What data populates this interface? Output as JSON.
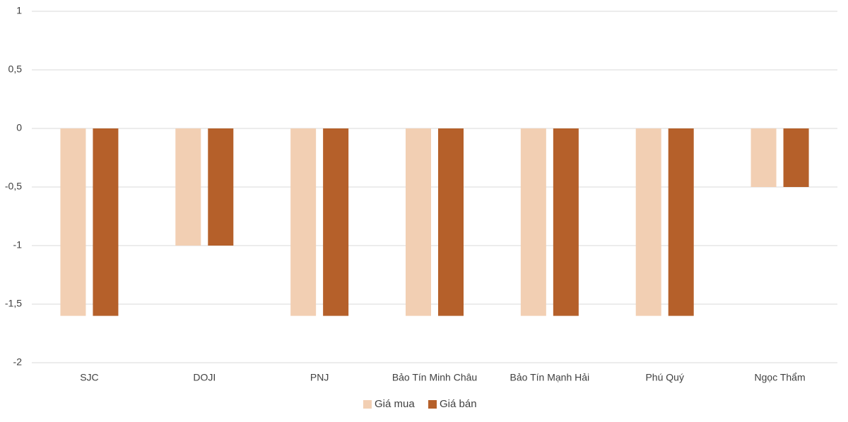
{
  "chart_data": {
    "type": "bar",
    "categories": [
      "SJC",
      "DOJI",
      "PNJ",
      "Bảo Tín Minh Châu",
      "Bảo Tín Mạnh Hải",
      "Phú Quý",
      "Ngọc Thẩm"
    ],
    "series": [
      {
        "name": "Giá mua",
        "color": "#f2cfb3",
        "values": [
          -1.6,
          -1,
          -1.6,
          -1.6,
          -1.6,
          -1.6,
          -0.5
        ]
      },
      {
        "name": "Giá bán",
        "color": "#b5602a",
        "values": [
          -1.6,
          -1,
          -1.6,
          -1.6,
          -1.6,
          -1.6,
          -0.5
        ]
      }
    ],
    "ylim": [
      -2,
      1
    ],
    "yticks": [
      -2,
      {
        "value": -1.5,
        "label": "-1,5"
      },
      -1,
      {
        "value": -0.5,
        "label": "-0,5"
      },
      0,
      {
        "value": 0.5,
        "label": "0,5"
      },
      1
    ],
    "grid": true,
    "legend": "bottom"
  }
}
